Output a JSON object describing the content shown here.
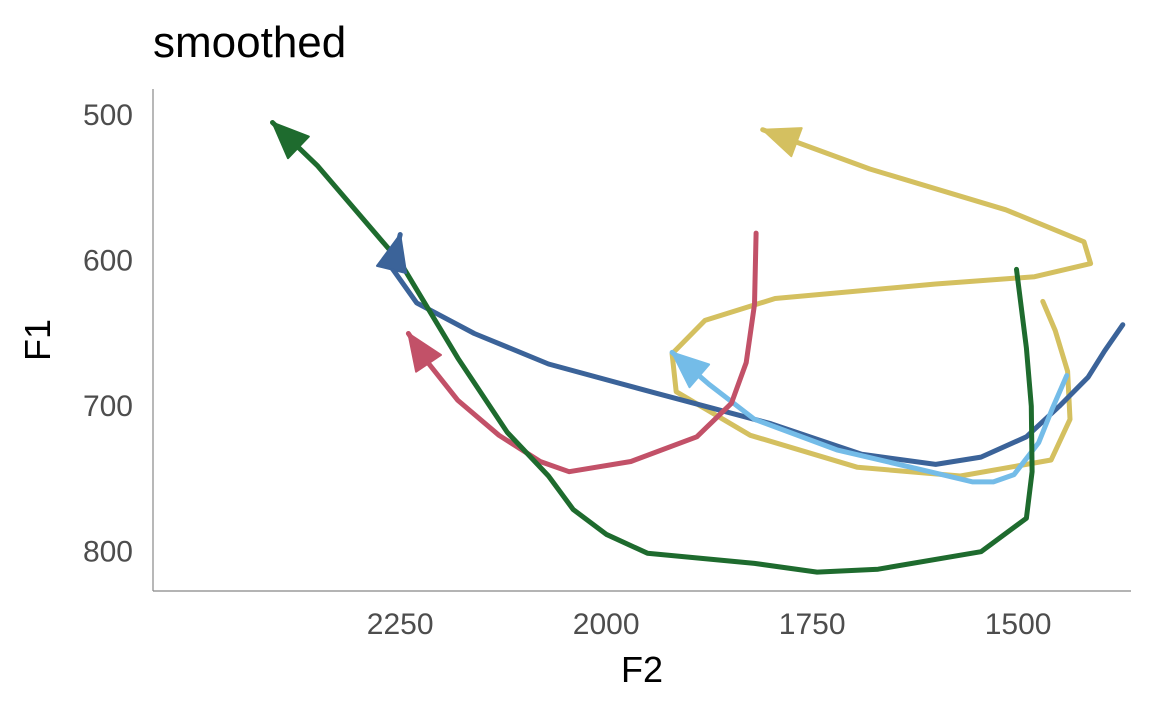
{
  "chart_data": {
    "type": "line",
    "title": "smoothed",
    "xlabel": "F2",
    "ylabel": "F1",
    "x_reversed": true,
    "y_reversed": true,
    "xlim": [
      1363,
      2550
    ],
    "ylim": [
      482,
      827
    ],
    "x_ticks": [
      2250,
      2000,
      1750,
      1500
    ],
    "y_ticks": [
      500,
      600,
      700,
      800
    ],
    "grid": false,
    "legend": "none",
    "arrowheads": "end",
    "series": [
      {
        "color": "#d4c060",
        "points": [
          [
            1470,
            628
          ],
          [
            1455,
            648
          ],
          [
            1440,
            676
          ],
          [
            1437,
            709
          ],
          [
            1460,
            737
          ],
          [
            1570,
            748
          ],
          [
            1695,
            742
          ],
          [
            1825,
            720
          ],
          [
            1915,
            690
          ],
          [
            1920,
            664
          ],
          [
            1880,
            641
          ],
          [
            1795,
            626
          ],
          [
            1600,
            616
          ],
          [
            1480,
            611
          ],
          [
            1412,
            602
          ],
          [
            1420,
            587
          ],
          [
            1515,
            565
          ],
          [
            1680,
            537
          ],
          [
            1810,
            510
          ]
        ]
      },
      {
        "color": "#3b6399",
        "points": [
          [
            1373,
            644
          ],
          [
            1395,
            662
          ],
          [
            1415,
            680
          ],
          [
            1450,
            700
          ],
          [
            1490,
            721
          ],
          [
            1545,
            735
          ],
          [
            1600,
            740
          ],
          [
            1690,
            733
          ],
          [
            1800,
            712
          ],
          [
            1940,
            691
          ],
          [
            2070,
            671
          ],
          [
            2160,
            650
          ],
          [
            2230,
            629
          ],
          [
            2260,
            605
          ],
          [
            2250,
            582
          ]
        ]
      },
      {
        "color": "#74bce8",
        "points": [
          [
            1441,
            679
          ],
          [
            1458,
            701
          ],
          [
            1475,
            725
          ],
          [
            1505,
            747
          ],
          [
            1530,
            752
          ],
          [
            1555,
            752
          ],
          [
            1615,
            744
          ],
          [
            1720,
            730
          ],
          [
            1820,
            709
          ],
          [
            1875,
            685
          ],
          [
            1920,
            663
          ]
        ]
      },
      {
        "color": "#c25168",
        "points": [
          [
            1818,
            581
          ],
          [
            1820,
            630
          ],
          [
            1830,
            670
          ],
          [
            1848,
            698
          ],
          [
            1890,
            721
          ],
          [
            1970,
            738
          ],
          [
            2045,
            745
          ],
          [
            2080,
            738
          ],
          [
            2130,
            720
          ],
          [
            2180,
            696
          ],
          [
            2215,
            671
          ],
          [
            2240,
            650
          ]
        ]
      },
      {
        "color": "#1e6b2e",
        "points": [
          [
            1502,
            606
          ],
          [
            1490,
            660
          ],
          [
            1484,
            700
          ],
          [
            1483,
            745
          ],
          [
            1490,
            777
          ],
          [
            1545,
            800
          ],
          [
            1670,
            812
          ],
          [
            1744,
            814
          ],
          [
            1820,
            808
          ],
          [
            1950,
            801
          ],
          [
            2000,
            788
          ],
          [
            2040,
            771
          ],
          [
            2070,
            748
          ],
          [
            2120,
            718
          ],
          [
            2180,
            667
          ],
          [
            2250,
            601
          ],
          [
            2350,
            535
          ],
          [
            2405,
            505
          ]
        ]
      }
    ]
  }
}
